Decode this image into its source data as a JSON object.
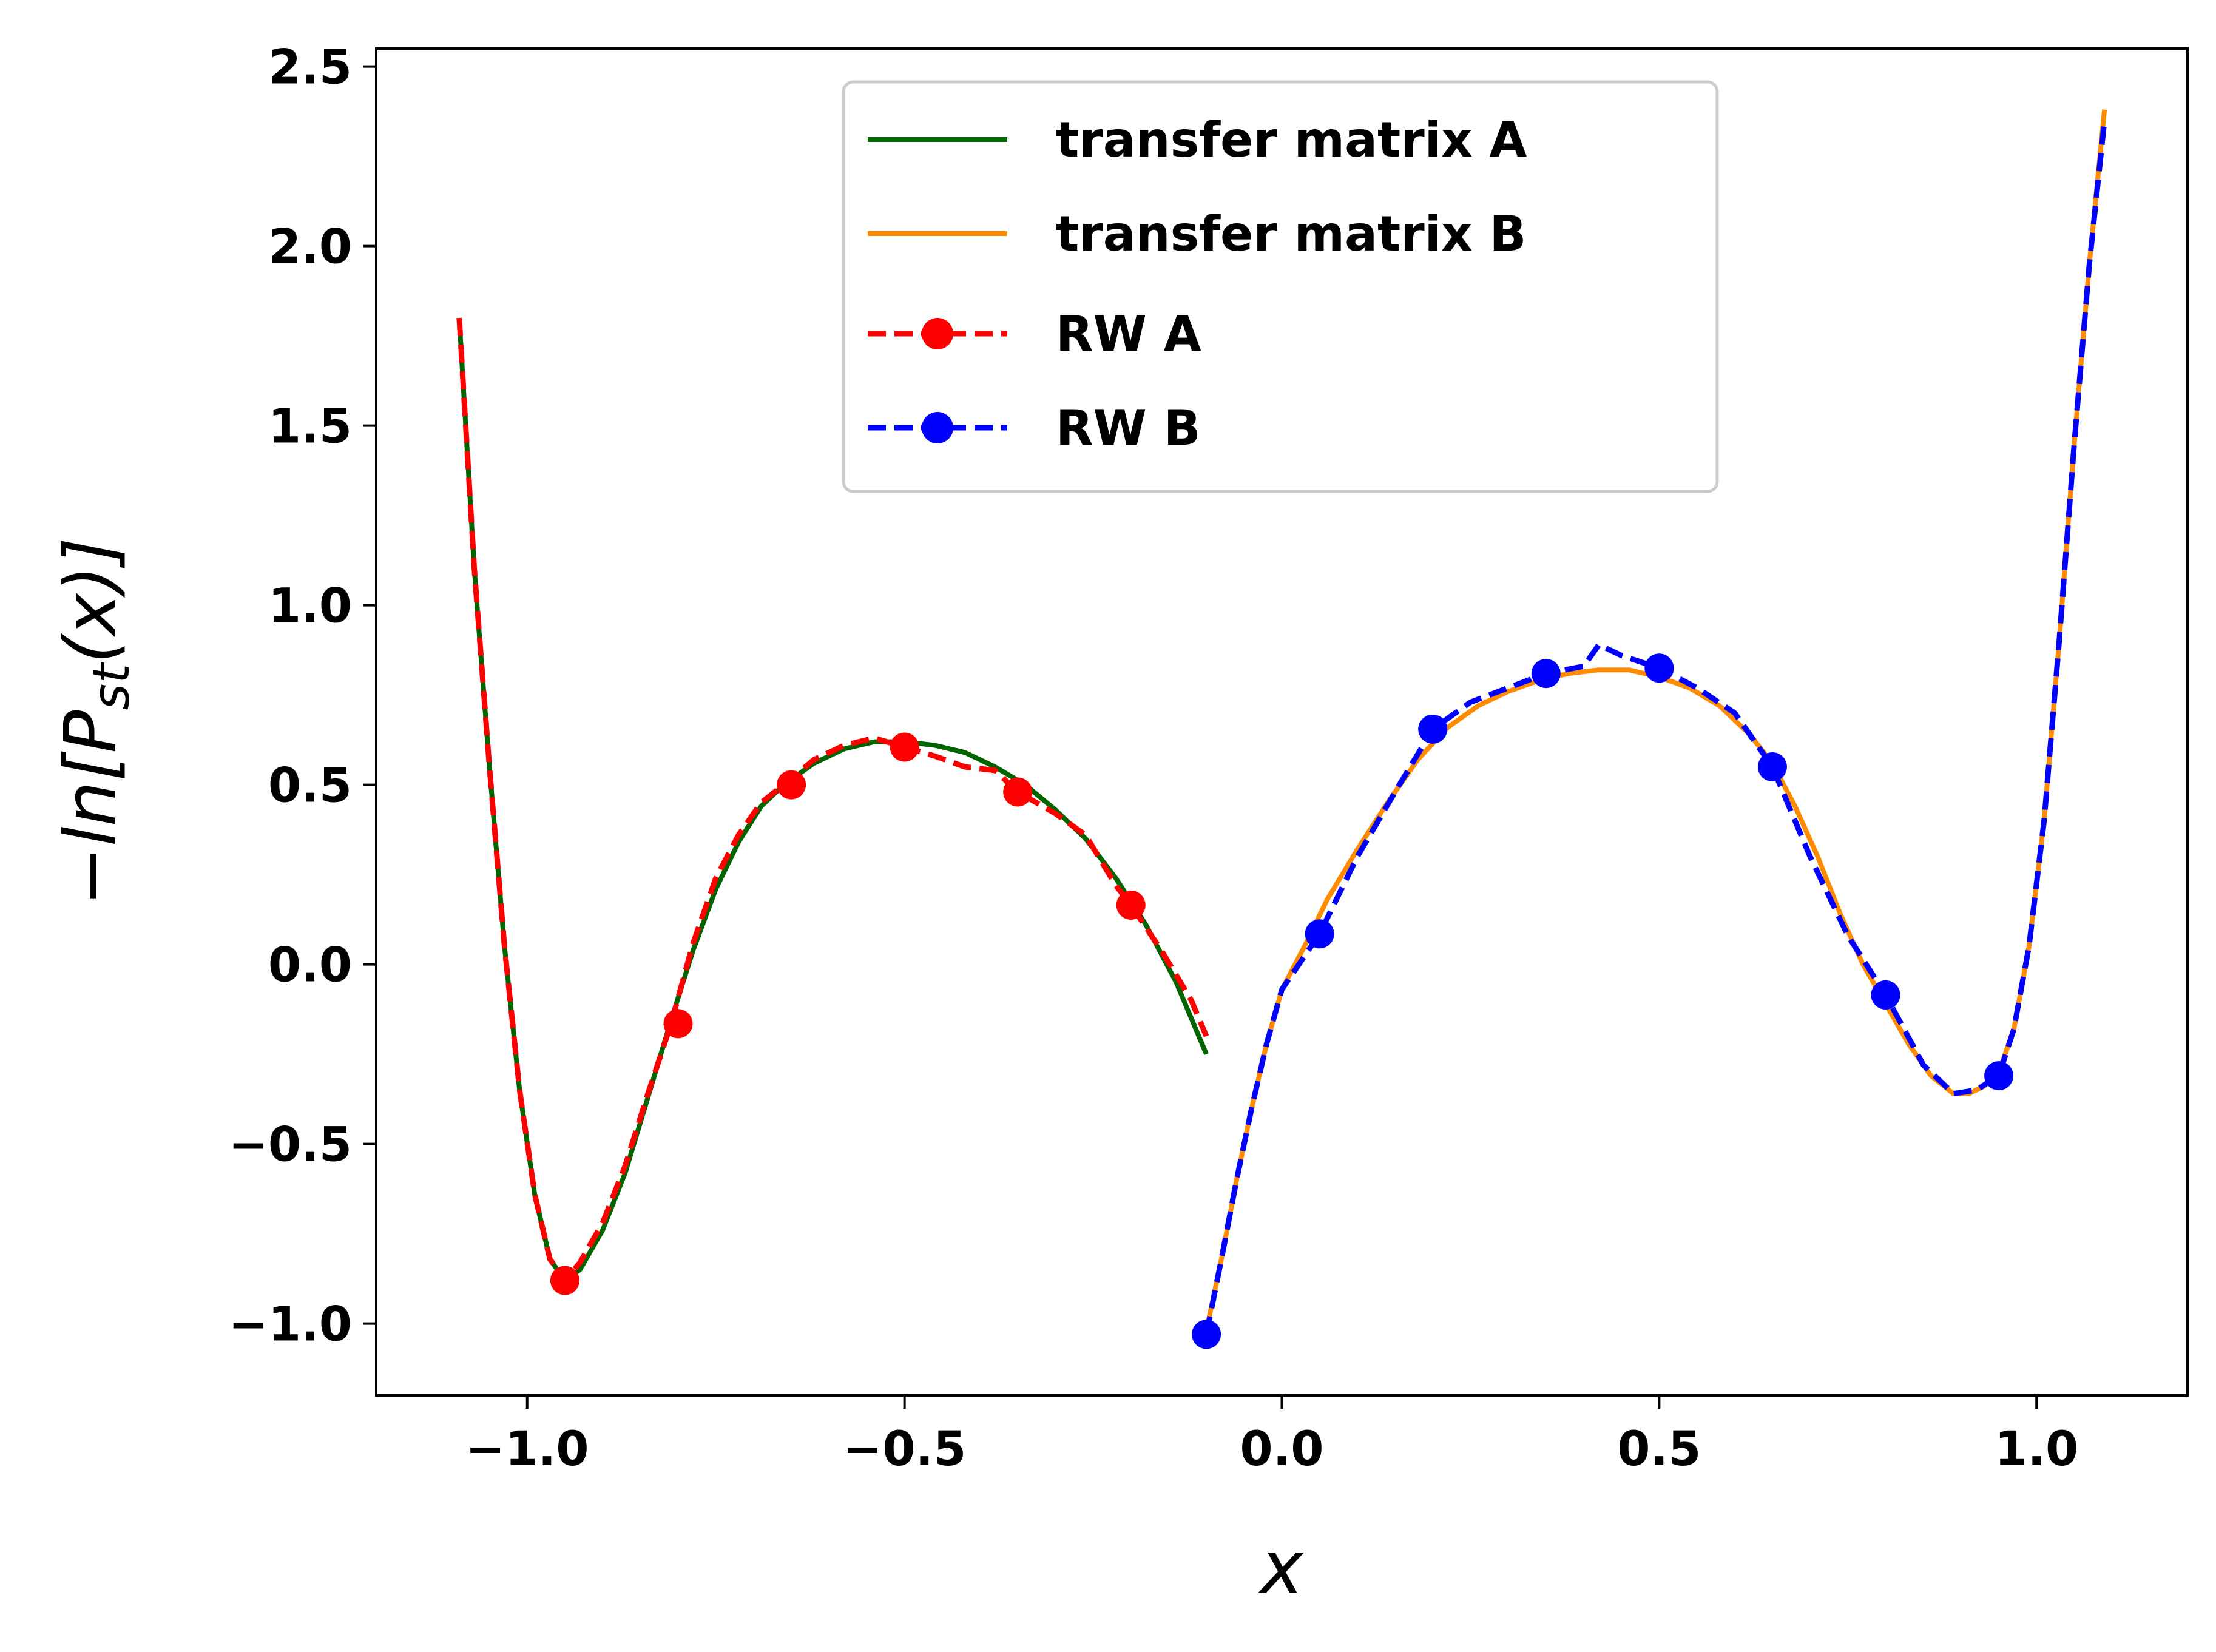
{
  "chart_data": {
    "type": "line",
    "xlabel": "x",
    "ylabel_main": "−ln[P",
    "ylabel_sub": "st",
    "ylabel_tail": "(x)]",
    "xlim": [
      -1.2,
      1.2
    ],
    "ylim": [
      -1.2,
      2.55
    ],
    "xticks": [
      -1.0,
      -0.5,
      0.0,
      0.5,
      1.0
    ],
    "xtick_labels": [
      "−1.0",
      "−0.5",
      "0.0",
      "0.5",
      "1.0"
    ],
    "yticks": [
      -1.0,
      -0.5,
      0.0,
      0.5,
      1.0,
      1.5,
      2.0,
      2.5
    ],
    "ytick_labels": [
      "−1.0",
      "−0.5",
      "0.0",
      "0.5",
      "1.0",
      "1.5",
      "2.0",
      "2.5"
    ],
    "grid": false,
    "legend_position": "upper center",
    "series": [
      {
        "name": "transfer matrix A",
        "style": "solid",
        "color": "#006400",
        "markers": false,
        "points": [
          [
            -1.09,
            1.8
          ],
          [
            -1.07,
            1.1
          ],
          [
            -1.05,
            0.55
          ],
          [
            -1.03,
            0.05
          ],
          [
            -1.01,
            -0.35
          ],
          [
            -0.99,
            -0.64
          ],
          [
            -0.97,
            -0.82
          ],
          [
            -0.95,
            -0.88
          ],
          [
            -0.93,
            -0.85
          ],
          [
            -0.9,
            -0.74
          ],
          [
            -0.87,
            -0.58
          ],
          [
            -0.84,
            -0.37
          ],
          [
            -0.81,
            -0.16
          ],
          [
            -0.78,
            0.04
          ],
          [
            -0.75,
            0.21
          ],
          [
            -0.72,
            0.34
          ],
          [
            -0.69,
            0.44
          ],
          [
            -0.66,
            0.5
          ],
          [
            -0.62,
            0.56
          ],
          [
            -0.58,
            0.6
          ],
          [
            -0.54,
            0.62
          ],
          [
            -0.5,
            0.62
          ],
          [
            -0.46,
            0.61
          ],
          [
            -0.42,
            0.59
          ],
          [
            -0.38,
            0.55
          ],
          [
            -0.34,
            0.5
          ],
          [
            -0.3,
            0.43
          ],
          [
            -0.26,
            0.35
          ],
          [
            -0.22,
            0.24
          ],
          [
            -0.18,
            0.11
          ],
          [
            -0.14,
            -0.05
          ],
          [
            -0.1,
            -0.25
          ]
        ]
      },
      {
        "name": "transfer matrix B",
        "style": "solid",
        "color": "#ff8c00",
        "markers": false,
        "points": [
          [
            -0.1,
            -1.02
          ],
          [
            -0.08,
            -0.82
          ],
          [
            -0.06,
            -0.6
          ],
          [
            -0.04,
            -0.4
          ],
          [
            -0.02,
            -0.22
          ],
          [
            0.0,
            -0.07
          ],
          [
            0.03,
            0.05
          ],
          [
            0.06,
            0.18
          ],
          [
            0.1,
            0.32
          ],
          [
            0.14,
            0.45
          ],
          [
            0.18,
            0.57
          ],
          [
            0.22,
            0.66
          ],
          [
            0.26,
            0.72
          ],
          [
            0.3,
            0.76
          ],
          [
            0.34,
            0.79
          ],
          [
            0.38,
            0.81
          ],
          [
            0.42,
            0.82
          ],
          [
            0.46,
            0.82
          ],
          [
            0.5,
            0.8
          ],
          [
            0.54,
            0.77
          ],
          [
            0.58,
            0.72
          ],
          [
            0.62,
            0.64
          ],
          [
            0.65,
            0.56
          ],
          [
            0.68,
            0.44
          ],
          [
            0.71,
            0.3
          ],
          [
            0.74,
            0.14
          ],
          [
            0.77,
            0.0
          ],
          [
            0.8,
            -0.11
          ],
          [
            0.83,
            -0.22
          ],
          [
            0.86,
            -0.31
          ],
          [
            0.89,
            -0.36
          ],
          [
            0.91,
            -0.36
          ],
          [
            0.93,
            -0.34
          ],
          [
            0.95,
            -0.3
          ],
          [
            0.97,
            -0.18
          ],
          [
            0.99,
            0.05
          ],
          [
            1.01,
            0.4
          ],
          [
            1.03,
            0.9
          ],
          [
            1.05,
            1.45
          ],
          [
            1.07,
            1.95
          ],
          [
            1.09,
            2.38
          ]
        ]
      },
      {
        "name": "RW A",
        "style": "dashed",
        "color": "#ff0000",
        "markers": true,
        "marker_points": [
          [
            -0.95,
            -0.88
          ],
          [
            -0.8,
            -0.165
          ],
          [
            -0.65,
            0.5
          ],
          [
            -0.5,
            0.605
          ],
          [
            -0.35,
            0.48
          ],
          [
            -0.2,
            0.165
          ]
        ],
        "points": [
          [
            -1.09,
            1.8
          ],
          [
            -1.07,
            1.1
          ],
          [
            -1.05,
            0.55
          ],
          [
            -1.03,
            0.05
          ],
          [
            -1.01,
            -0.35
          ],
          [
            -0.99,
            -0.64
          ],
          [
            -0.97,
            -0.82
          ],
          [
            -0.95,
            -0.88
          ],
          [
            -0.93,
            -0.83
          ],
          [
            -0.9,
            -0.72
          ],
          [
            -0.87,
            -0.56
          ],
          [
            -0.84,
            -0.36
          ],
          [
            -0.81,
            -0.17
          ],
          [
            -0.78,
            0.06
          ],
          [
            -0.75,
            0.24
          ],
          [
            -0.72,
            0.36
          ],
          [
            -0.69,
            0.45
          ],
          [
            -0.66,
            0.5
          ],
          [
            -0.62,
            0.57
          ],
          [
            -0.58,
            0.61
          ],
          [
            -0.54,
            0.63
          ],
          [
            -0.5,
            0.605
          ],
          [
            -0.46,
            0.58
          ],
          [
            -0.42,
            0.55
          ],
          [
            -0.38,
            0.54
          ],
          [
            -0.35,
            0.48
          ],
          [
            -0.3,
            0.42
          ],
          [
            -0.26,
            0.36
          ],
          [
            -0.22,
            0.22
          ],
          [
            -0.2,
            0.165
          ],
          [
            -0.16,
            0.04
          ],
          [
            -0.12,
            -0.1
          ],
          [
            -0.1,
            -0.2
          ]
        ]
      },
      {
        "name": "RW B",
        "style": "dashed",
        "color": "#0000ff",
        "markers": true,
        "marker_points": [
          [
            -0.1,
            -1.03
          ],
          [
            0.05,
            0.085
          ],
          [
            0.2,
            0.655
          ],
          [
            0.35,
            0.81
          ],
          [
            0.5,
            0.825
          ],
          [
            0.65,
            0.55
          ],
          [
            0.8,
            -0.085
          ],
          [
            0.95,
            -0.31
          ]
        ],
        "points": [
          [
            -0.1,
            -1.03
          ],
          [
            -0.08,
            -0.82
          ],
          [
            -0.06,
            -0.6
          ],
          [
            -0.04,
            -0.4
          ],
          [
            -0.02,
            -0.22
          ],
          [
            0.0,
            -0.07
          ],
          [
            0.05,
            0.085
          ],
          [
            0.1,
            0.3
          ],
          [
            0.15,
            0.48
          ],
          [
            0.2,
            0.655
          ],
          [
            0.25,
            0.73
          ],
          [
            0.3,
            0.77
          ],
          [
            0.35,
            0.81
          ],
          [
            0.4,
            0.83
          ],
          [
            0.42,
            0.89
          ],
          [
            0.45,
            0.86
          ],
          [
            0.5,
            0.825
          ],
          [
            0.55,
            0.77
          ],
          [
            0.6,
            0.7
          ],
          [
            0.65,
            0.55
          ],
          [
            0.7,
            0.3
          ],
          [
            0.75,
            0.08
          ],
          [
            0.8,
            -0.085
          ],
          [
            0.85,
            -0.28
          ],
          [
            0.89,
            -0.36
          ],
          [
            0.92,
            -0.35
          ],
          [
            0.95,
            -0.31
          ],
          [
            0.97,
            -0.18
          ],
          [
            0.99,
            0.05
          ],
          [
            1.01,
            0.4
          ],
          [
            1.03,
            0.9
          ],
          [
            1.05,
            1.45
          ],
          [
            1.07,
            1.95
          ],
          [
            1.09,
            2.35
          ]
        ]
      }
    ]
  }
}
